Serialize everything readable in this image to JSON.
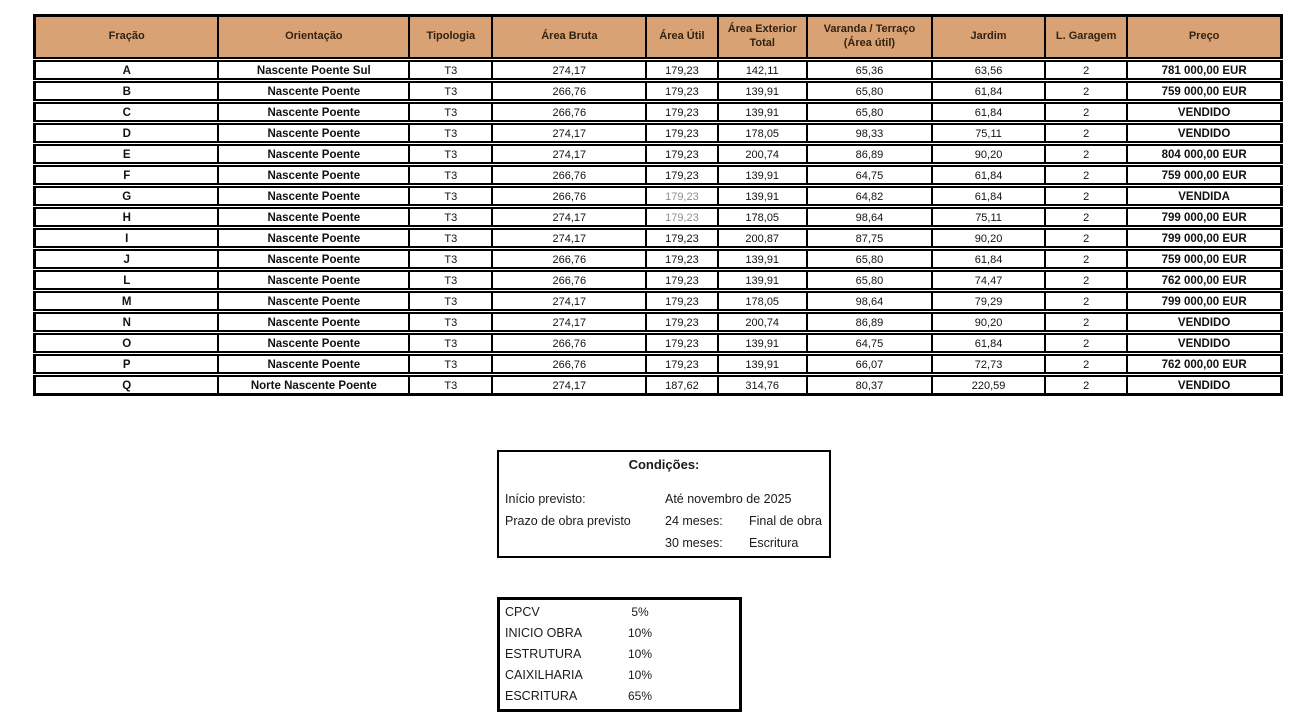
{
  "colors": {
    "header_bg": "#d9a275",
    "header_text": "#33220f",
    "border": "#000000",
    "page_bg": "#ffffff",
    "muted_text": "#8f8f8f"
  },
  "price_table": {
    "columns": [
      {
        "key": "fracao",
        "label": "Fração"
      },
      {
        "key": "orientacao",
        "label": "Orientação"
      },
      {
        "key": "tipologia",
        "label": "Tipologia"
      },
      {
        "key": "area_bruta",
        "label": "Área Bruta"
      },
      {
        "key": "area_util",
        "label": "Área Útil"
      },
      {
        "key": "area_exterior",
        "label": "Área Exterior Total"
      },
      {
        "key": "varanda",
        "label": "Varanda / Terraço (Área útil)"
      },
      {
        "key": "jardim",
        "label": "Jardim"
      },
      {
        "key": "garagem",
        "label": "L. Garagem"
      },
      {
        "key": "preco",
        "label": "Preço"
      }
    ],
    "rows": [
      [
        "A",
        "Nascente Poente Sul",
        "T3",
        "274,17",
        "179,23",
        "142,11",
        "65,36",
        "63,56",
        "2",
        "781 000,00 EUR"
      ],
      [
        "B",
        "Nascente Poente",
        "T3",
        "266,76",
        "179,23",
        "139,91",
        "65,80",
        "61,84",
        "2",
        "759 000,00 EUR"
      ],
      [
        "C",
        "Nascente Poente",
        "T3",
        "266,76",
        "179,23",
        "139,91",
        "65,80",
        "61,84",
        "2",
        "VENDIDO"
      ],
      [
        "D",
        "Nascente Poente",
        "T3",
        "274,17",
        "179,23",
        "178,05",
        "98,33",
        "75,11",
        "2",
        "VENDIDO"
      ],
      [
        "E",
        "Nascente Poente",
        "T3",
        "274,17",
        "179,23",
        "200,74",
        "86,89",
        "90,20",
        "2",
        "804 000,00 EUR"
      ],
      [
        "F",
        "Nascente Poente",
        "T3",
        "266,76",
        "179,23",
        "139,91",
        "64,75",
        "61,84",
        "2",
        "759 000,00 EUR"
      ],
      [
        "G",
        "Nascente Poente",
        "T3",
        "266,76",
        "179,23",
        "139,91",
        "64,82",
        "61,84",
        "2",
        "VENDIDA"
      ],
      [
        "H",
        "Nascente Poente",
        "T3",
        "274,17",
        "179,23",
        "178,05",
        "98,64",
        "75,11",
        "2",
        "799 000,00 EUR"
      ],
      [
        "I",
        "Nascente Poente",
        "T3",
        "274,17",
        "179,23",
        "200,87",
        "87,75",
        "90,20",
        "2",
        "799 000,00 EUR"
      ],
      [
        "J",
        "Nascente Poente",
        "T3",
        "266,76",
        "179,23",
        "139,91",
        "65,80",
        "61,84",
        "2",
        "759 000,00 EUR"
      ],
      [
        "L",
        "Nascente Poente",
        "T3",
        "266,76",
        "179,23",
        "139,91",
        "65,80",
        "74,47",
        "2",
        "762 000,00 EUR"
      ],
      [
        "M",
        "Nascente Poente",
        "T3",
        "274,17",
        "179,23",
        "178,05",
        "98,64",
        "79,29",
        "2",
        "799 000,00 EUR"
      ],
      [
        "N",
        "Nascente Poente",
        "T3",
        "274,17",
        "179,23",
        "200,74",
        "86,89",
        "90,20",
        "2",
        "VENDIDO"
      ],
      [
        "O",
        "Nascente Poente",
        "T3",
        "266,76",
        "179,23",
        "139,91",
        "64,75",
        "61,84",
        "2",
        "VENDIDO"
      ],
      [
        "P",
        "Nascente Poente",
        "T3",
        "266,76",
        "179,23",
        "139,91",
        "66,07",
        "72,73",
        "2",
        "762 000,00 EUR"
      ],
      [
        "Q",
        "Norte Nascente Poente",
        "T3",
        "274,17",
        "187,62",
        "314,76",
        "80,37",
        "220,59",
        "2",
        "VENDIDO"
      ]
    ],
    "muted_cells": [
      [
        6,
        4
      ],
      [
        7,
        4
      ]
    ]
  },
  "conditions_box": {
    "title": "Condições:",
    "rows": [
      [
        "Início previsto:",
        "Até novembro de 2025",
        ""
      ],
      [
        "Prazo de obra previsto",
        "24 meses:",
        "Final de obra"
      ],
      [
        "",
        "30 meses:",
        "Escritura"
      ]
    ]
  },
  "payment_box": {
    "rows": [
      [
        "CPCV",
        "5%"
      ],
      [
        "INICIO OBRA",
        "10%"
      ],
      [
        "ESTRUTURA",
        "10%"
      ],
      [
        "CAIXILHARIA",
        "10%"
      ],
      [
        "ESCRITURA",
        "65%"
      ]
    ]
  }
}
